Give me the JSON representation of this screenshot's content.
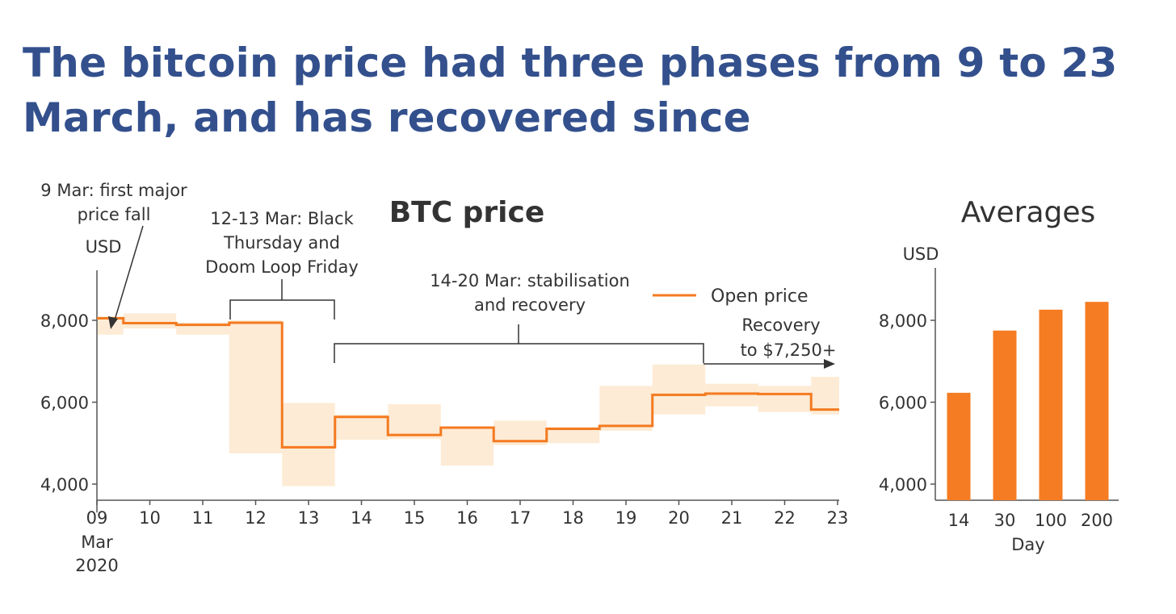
{
  "headline": "The bitcoin price had three phases from 9 to 23 March, and has recovered since",
  "colors": {
    "headline": "#33508d",
    "line": "#f47a20",
    "range_fill": "#fdebd5",
    "bar": "#f57c22",
    "text": "#333333",
    "annotation_line": "#333333"
  },
  "chart_data": [
    {
      "type": "line",
      "title": "BTC price",
      "ylabel": "USD",
      "xlabel": "",
      "step": true,
      "ylim": [
        3700,
        9300
      ],
      "yticks": [
        4000,
        6000,
        8000
      ],
      "ytick_labels": [
        "4,000",
        "6,000",
        "8,000"
      ],
      "x_tick_labels": [
        "09",
        "10",
        "11",
        "12",
        "13",
        "14",
        "15",
        "16",
        "17",
        "18",
        "19",
        "20",
        "21",
        "22",
        "23"
      ],
      "x_first_tick_sublabels": [
        "Mar",
        "2020"
      ],
      "series": [
        {
          "name": "Open price",
          "x": [
            9,
            10,
            11,
            12,
            13,
            14,
            15,
            16,
            17,
            18,
            19,
            20,
            21,
            22,
            23
          ],
          "values": [
            8050,
            7930,
            7890,
            7940,
            4900,
            5640,
            5200,
            5380,
            5050,
            5350,
            5420,
            6180,
            6210,
            6200,
            5820
          ]
        }
      ],
      "daily_range": {
        "x": [
          9,
          10,
          11,
          12,
          13,
          14,
          15,
          16,
          17,
          18,
          19,
          20,
          21,
          22,
          23
        ],
        "low": [
          7650,
          7800,
          7650,
          4750,
          3950,
          5080,
          5100,
          4450,
          4950,
          5000,
          5300,
          5700,
          5900,
          5760,
          5700
        ],
        "high": [
          8100,
          8170,
          7950,
          8000,
          5980,
          5700,
          5950,
          5400,
          5550,
          5400,
          6400,
          6920,
          6450,
          6400,
          6620
        ]
      },
      "legend": {
        "label": "Open price",
        "position": "top-right"
      },
      "annotations": [
        {
          "lines": [
            "9 Mar: first major",
            "price fall"
          ]
        },
        {
          "lines": [
            "12-13 Mar: Black",
            "Thursday and",
            "Doom Loop Friday"
          ]
        },
        {
          "lines": [
            "14-20 Mar: stabilisation",
            "and recovery"
          ]
        },
        {
          "lines": [
            "Recovery",
            "to $7,250+"
          ]
        }
      ]
    },
    {
      "type": "bar",
      "title": "Averages",
      "ylabel": "USD",
      "xlabel": "Day",
      "ylim": [
        3700,
        9300
      ],
      "yticks": [
        4000,
        6000,
        8000
      ],
      "ytick_labels": [
        "4,000",
        "6,000",
        "8,000"
      ],
      "categories": [
        "14",
        "30",
        "100",
        "200"
      ],
      "values": [
        6230,
        7750,
        8260,
        8450
      ]
    }
  ]
}
